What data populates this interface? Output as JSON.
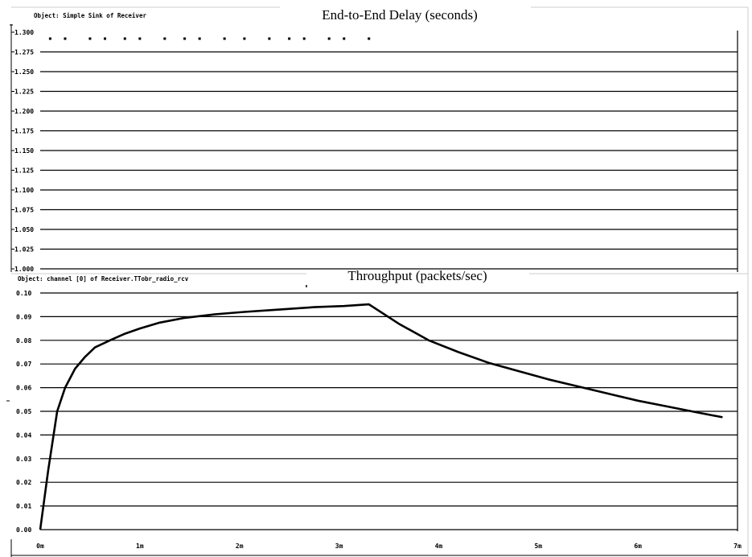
{
  "chart_data": [
    {
      "type": "scatter",
      "title": "End-to-End Delay (seconds)",
      "object_label": "Object: Simple Sink of Receiver",
      "ylim": [
        1.0,
        1.3
      ],
      "y_ticks": [
        "1.300",
        "1.275",
        "1.250",
        "1.225",
        "1.200",
        "1.175",
        "1.150",
        "1.125",
        "1.100",
        "1.075",
        "1.050",
        "1.025",
        "1.000"
      ],
      "xlim": [
        0,
        7
      ],
      "grid": true,
      "series": [
        {
          "x": [
            0.1,
            0.25,
            0.5,
            0.65,
            0.85,
            1.0,
            1.25,
            1.45,
            1.6,
            1.85,
            2.05,
            2.3,
            2.5,
            2.65,
            2.9,
            3.05,
            3.3
          ],
          "values": [
            1.3,
            1.3,
            1.3,
            1.3,
            1.3,
            1.3,
            1.3,
            1.3,
            1.3,
            1.3,
            1.3,
            1.3,
            1.3,
            1.3,
            1.3,
            1.3,
            1.3
          ]
        }
      ]
    },
    {
      "type": "line",
      "title": "Throughput (packets/sec)",
      "object_label": "Object: channel [0] of Receiver.TTobr_radio_rcv",
      "ylim": [
        0.0,
        0.1
      ],
      "y_ticks": [
        "0.10",
        "0.09",
        "0.08",
        "0.07",
        "0.06",
        "0.05",
        "0.04",
        "0.03",
        "0.02",
        "0.01",
        "0.00"
      ],
      "xlim": [
        0,
        7
      ],
      "x_ticks": [
        "0m",
        "1m",
        "2m",
        "3m",
        "4m",
        "5m",
        "6m",
        "7m"
      ],
      "grid": true,
      "series": [
        {
          "x": [
            0.0,
            0.08,
            0.17,
            0.25,
            0.35,
            0.45,
            0.55,
            0.7,
            0.85,
            1.0,
            1.2,
            1.45,
            1.75,
            2.05,
            2.4,
            2.75,
            3.05,
            3.3,
            3.6,
            3.9,
            4.2,
            4.5,
            4.8,
            5.1,
            5.4,
            5.7,
            6.0,
            6.3,
            6.6,
            6.85
          ],
          "values": [
            0.0,
            0.025,
            0.05,
            0.06,
            0.068,
            0.073,
            0.077,
            0.08,
            0.0828,
            0.085,
            0.0875,
            0.0895,
            0.091,
            0.092,
            0.093,
            0.094,
            0.0945,
            0.0952,
            0.087,
            0.08,
            0.075,
            0.0705,
            0.067,
            0.0635,
            0.0605,
            0.0575,
            0.0545,
            0.052,
            0.0495,
            0.0475
          ]
        }
      ]
    }
  ]
}
